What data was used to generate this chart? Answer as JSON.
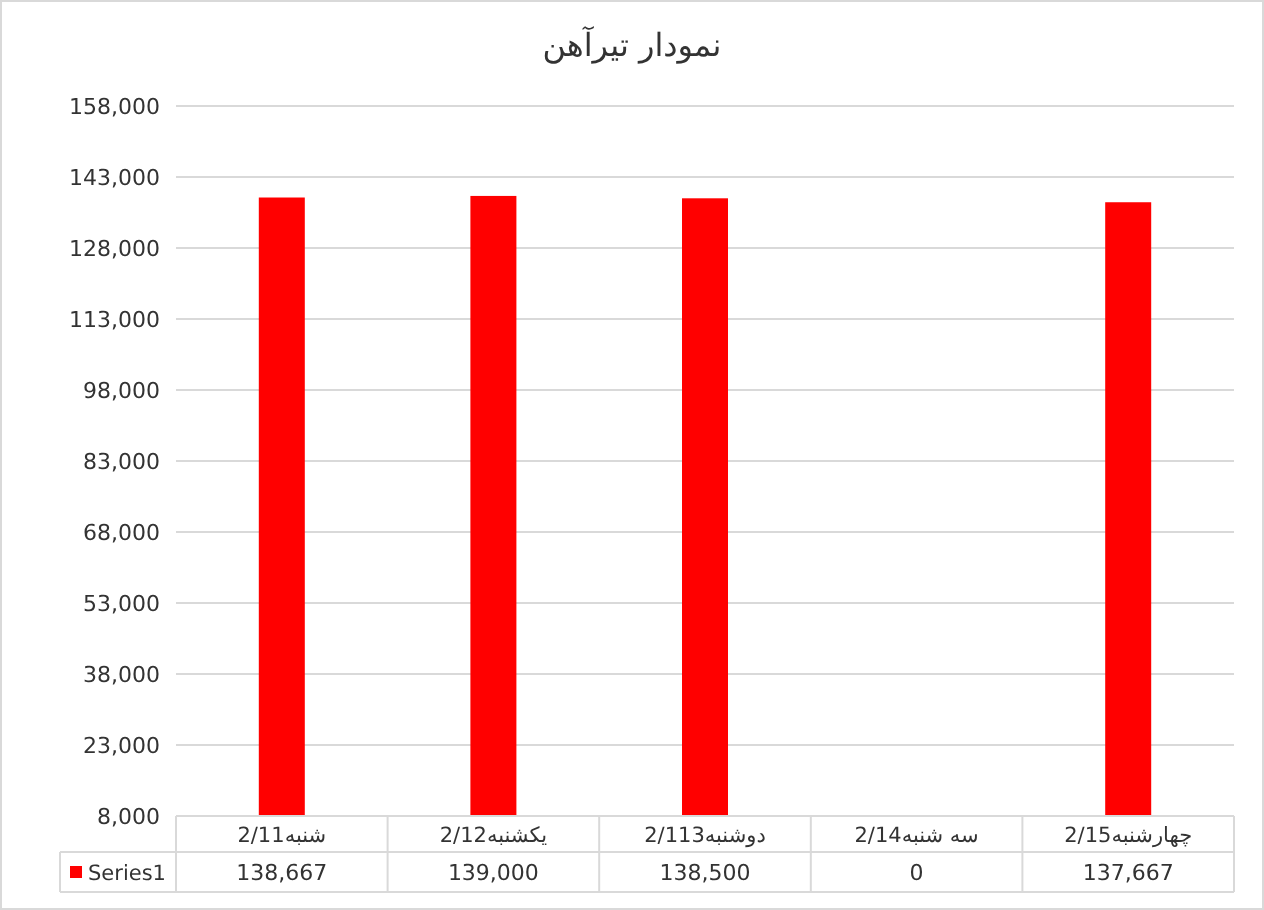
{
  "chart_data": {
    "type": "bar",
    "title": "نمودار تیرآهن",
    "categories": [
      "شنبه2/11",
      "یکشنبه2/12",
      "دوشنبه2/113",
      "سه شنبه2/14",
      "چهارشنبه2/15"
    ],
    "series": [
      {
        "name": "Series1",
        "color": "#ff0000",
        "values": [
          138667,
          139000,
          138500,
          null,
          137667
        ],
        "value_labels": [
          "138,667",
          "139,000",
          "138,500",
          "0",
          "137,667"
        ]
      }
    ],
    "ylim": [
      8000,
      158000
    ],
    "yticks": [
      {
        "value": 8000,
        "label": "8,000"
      },
      {
        "value": 23000,
        "label": "23,000"
      },
      {
        "value": 38000,
        "label": "38,000"
      },
      {
        "value": 53000,
        "label": "53,000"
      },
      {
        "value": 68000,
        "label": "68,000"
      },
      {
        "value": 83000,
        "label": "83,000"
      },
      {
        "value": 98000,
        "label": "98,000"
      },
      {
        "value": 113000,
        "label": "113,000"
      },
      {
        "value": 128000,
        "label": "128,000"
      },
      {
        "value": 143000,
        "label": "143,000"
      },
      {
        "value": 158000,
        "label": "158,000"
      }
    ],
    "grid": "y",
    "legend": "bottom"
  }
}
